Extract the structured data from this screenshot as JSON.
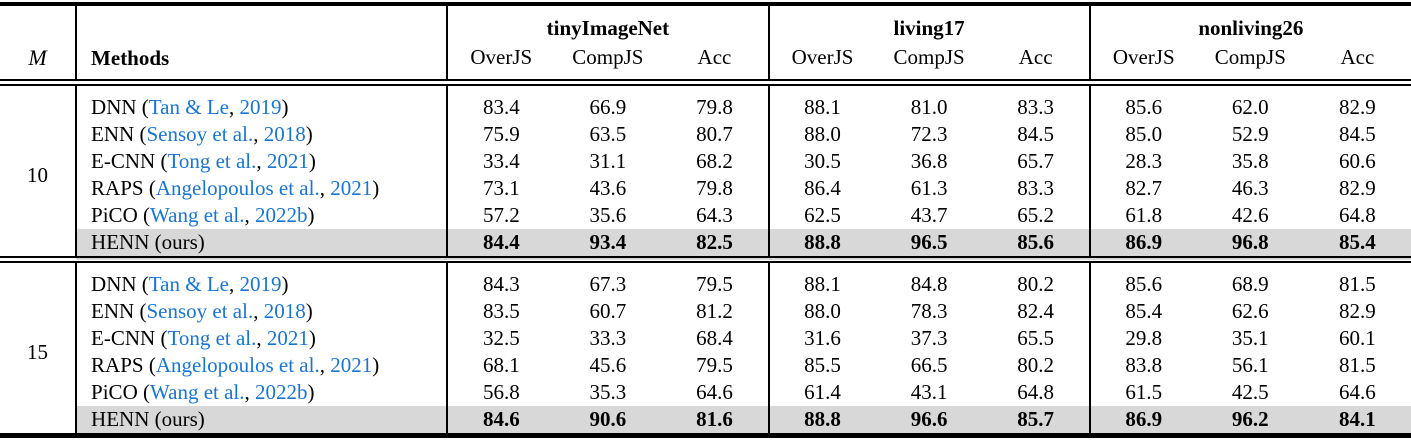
{
  "colors": {
    "link_blue": "#1a75d2",
    "highlight_gray": "#d8d8d8",
    "rule_black": "#000000"
  },
  "punct": {
    "open": " (",
    "sep": ", ",
    "close": ")"
  },
  "table": {
    "m_header": "M",
    "methods_header": "Methods",
    "groups": [
      {
        "name": "tinyImageNet",
        "columns": [
          "OverJS",
          "CompJS",
          "Acc"
        ]
      },
      {
        "name": "living17",
        "columns": [
          "OverJS",
          "CompJS",
          "Acc"
        ]
      },
      {
        "name": "nonliving26",
        "columns": [
          "OverJS",
          "CompJS",
          "Acc"
        ]
      }
    ],
    "blocks": [
      {
        "m": "10",
        "rows": [
          {
            "method": "DNN",
            "cite_authors": "Tan & Le",
            "cite_year": "2019",
            "highlight": false,
            "values": [
              "83.4",
              "66.9",
              "79.8",
              "88.1",
              "81.0",
              "83.3",
              "85.6",
              "62.0",
              "82.9"
            ]
          },
          {
            "method": "ENN",
            "cite_authors": "Sensoy et al.",
            "cite_year": "2018",
            "highlight": false,
            "values": [
              "75.9",
              "63.5",
              "80.7",
              "88.0",
              "72.3",
              "84.5",
              "85.0",
              "52.9",
              "84.5"
            ]
          },
          {
            "method": "E-CNN",
            "cite_authors": "Tong et al.",
            "cite_year": "2021",
            "highlight": false,
            "values": [
              "33.4",
              "31.1",
              "68.2",
              "30.5",
              "36.8",
              "65.7",
              "28.3",
              "35.8",
              "60.6"
            ]
          },
          {
            "method": "RAPS",
            "cite_authors": "Angelopoulos et al.",
            "cite_year": "2021",
            "highlight": false,
            "values": [
              "73.1",
              "43.6",
              "79.8",
              "86.4",
              "61.3",
              "83.3",
              "82.7",
              "46.3",
              "82.9"
            ]
          },
          {
            "method": "PiCO",
            "cite_authors": "Wang et al.",
            "cite_year": "2022b",
            "highlight": false,
            "values": [
              "57.2",
              "35.6",
              "64.3",
              "62.5",
              "43.7",
              "65.2",
              "61.8",
              "42.6",
              "64.8"
            ]
          },
          {
            "method": "HENN",
            "suffix": "(ours)",
            "highlight": true,
            "values": [
              "84.4",
              "93.4",
              "82.5",
              "88.8",
              "96.5",
              "85.6",
              "86.9",
              "96.8",
              "85.4"
            ]
          }
        ]
      },
      {
        "m": "15",
        "rows": [
          {
            "method": "DNN",
            "cite_authors": "Tan & Le",
            "cite_year": "2019",
            "highlight": false,
            "values": [
              "84.3",
              "67.3",
              "79.5",
              "88.1",
              "84.8",
              "80.2",
              "85.6",
              "68.9",
              "81.5"
            ]
          },
          {
            "method": "ENN",
            "cite_authors": "Sensoy et al.",
            "cite_year": "2018",
            "highlight": false,
            "values": [
              "83.5",
              "60.7",
              "81.2",
              "88.0",
              "78.3",
              "82.4",
              "85.4",
              "62.6",
              "82.9"
            ]
          },
          {
            "method": "E-CNN",
            "cite_authors": "Tong et al.",
            "cite_year": "2021",
            "highlight": false,
            "values": [
              "32.5",
              "33.3",
              "68.4",
              "31.6",
              "37.3",
              "65.5",
              "29.8",
              "35.1",
              "60.1"
            ]
          },
          {
            "method": "RAPS",
            "cite_authors": "Angelopoulos et al.",
            "cite_year": "2021",
            "highlight": false,
            "values": [
              "68.1",
              "45.6",
              "79.5",
              "85.5",
              "66.5",
              "80.2",
              "83.8",
              "56.1",
              "81.5"
            ]
          },
          {
            "method": "PiCO",
            "cite_authors": "Wang et al.",
            "cite_year": "2022b",
            "highlight": false,
            "values": [
              "56.8",
              "35.3",
              "64.6",
              "61.4",
              "43.1",
              "64.8",
              "61.5",
              "42.5",
              "64.6"
            ]
          },
          {
            "method": "HENN",
            "suffix": "(ours)",
            "highlight": true,
            "values": [
              "84.6",
              "90.6",
              "81.6",
              "88.8",
              "96.6",
              "85.7",
              "86.9",
              "96.2",
              "84.1"
            ]
          }
        ]
      }
    ]
  }
}
